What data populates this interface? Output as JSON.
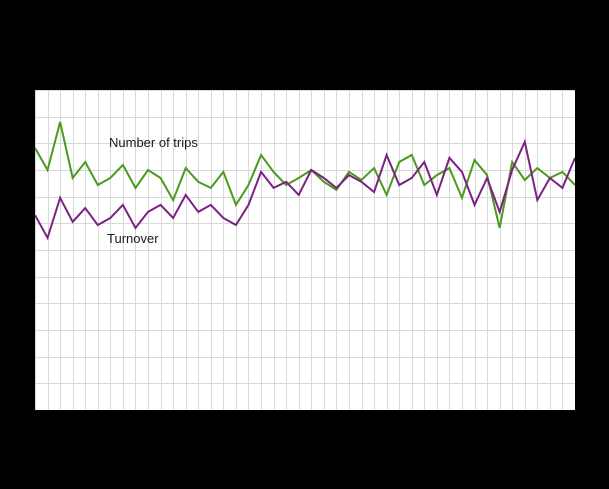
{
  "colors": {
    "page_background": "#000000",
    "plot_background": "#ffffff",
    "grid": "#d9d9d9",
    "trips_line": "#4a9b1c",
    "turnover_line": "#7b2382",
    "label_text": "#1a1a1a"
  },
  "chart_data": {
    "type": "line",
    "title": "",
    "xlabel": "",
    "ylabel": "",
    "ylim": [
      0,
      100
    ],
    "grid": {
      "visible": true,
      "v_divisions": 43,
      "h_divisions": 12
    },
    "legend_position": "inside-plot-annotations",
    "x_count": 44,
    "series": [
      {
        "name": "Number of trips",
        "color": "#4a9b1c",
        "values": [
          81.9,
          75.0,
          90.0,
          72.5,
          77.5,
          70.3,
          72.5,
          76.6,
          69.4,
          75.0,
          72.5,
          65.6,
          75.6,
          71.3,
          69.4,
          74.4,
          64.1,
          70.3,
          79.7,
          74.4,
          70.3,
          72.5,
          75.0,
          71.3,
          68.8,
          74.4,
          71.9,
          75.6,
          67.2,
          77.5,
          79.7,
          70.3,
          73.4,
          75.6,
          66.3,
          78.1,
          73.4,
          56.9,
          77.5,
          71.9,
          75.6,
          72.5,
          74.4,
          70.3
        ]
      },
      {
        "name": "Turnover",
        "color": "#7b2382",
        "values": [
          60.9,
          53.8,
          66.3,
          58.8,
          63.1,
          57.8,
          60.0,
          64.1,
          56.9,
          61.9,
          64.1,
          60.0,
          67.2,
          61.9,
          64.1,
          60.0,
          57.8,
          64.1,
          74.4,
          69.4,
          71.3,
          67.2,
          75.0,
          72.5,
          69.4,
          73.4,
          71.3,
          68.1,
          79.7,
          70.3,
          72.5,
          77.5,
          67.2,
          78.8,
          74.4,
          64.1,
          72.5,
          61.9,
          75.0,
          83.8,
          65.6,
          72.5,
          69.4,
          78.8
        ]
      }
    ],
    "annotations": [
      {
        "text": "Number of trips"
      },
      {
        "text": "Turnover"
      }
    ]
  }
}
